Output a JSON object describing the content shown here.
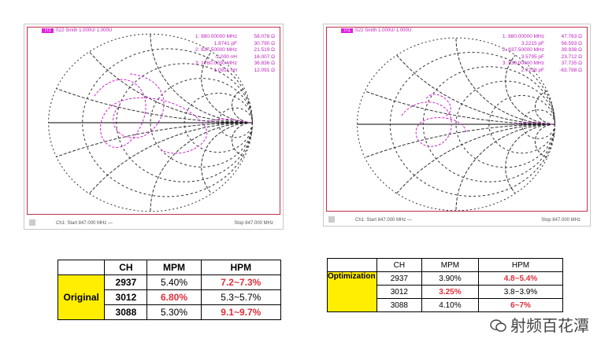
{
  "charts": [
    {
      "header_tag": "Tr1",
      "header": "S22 Smith 1.000U/ 1.000U",
      "markers": [
        [
          "1: 880.00000 MHz",
          "58.078 Ω"
        ],
        [
          "1.8741 pF",
          "30.790 Ω"
        ],
        [
          "2: 837.50000 MHz",
          "21.519 Ω"
        ],
        [
          "-2.000 nH",
          "16.007 Ω"
        ],
        [
          "3: 1760.0000 MHz",
          "36.836 Ω"
        ],
        [
          "1.0911 nH",
          "12.091 Ω"
        ]
      ],
      "start": "Ch1: Start 847.000 MHz —",
      "stop": "Stop 847.000 MHz"
    },
    {
      "header_tag": "Tr1",
      "header": "S22 Smith 1.000U/ 1.000U",
      "markers": [
        [
          "1: 880.00000 MHz",
          "47.763 Ω"
        ],
        [
          "3.2215 pF",
          "56.593 Ω"
        ],
        [
          "2: 837.50000 MHz",
          "39.938 Ω"
        ],
        [
          "3.5795 pF",
          "23.712 Ω"
        ],
        [
          "3: 930.00000 MHz",
          "37.735 Ω"
        ],
        [
          "2.7238 pF",
          "-63.788 Ω"
        ]
      ],
      "start": "Ch1: Start 847.000 MHz —",
      "stop": "Stop 847.000 MHz"
    }
  ],
  "colors": {
    "trace": "#d020d0",
    "highlight": "#ffee00",
    "bad": "#e0303c"
  },
  "tables": [
    {
      "label": "Original",
      "headers": [
        "CH",
        "MPM",
        "HPM"
      ],
      "rows": [
        [
          "2937",
          "5.40%",
          "7.2~7.3%"
        ],
        [
          "3012",
          "6.80%",
          "5.3~5.7%"
        ],
        [
          "3088",
          "5.30%",
          "9.1~9.7%"
        ]
      ],
      "red": [
        [
          0,
          2
        ],
        [
          1,
          1
        ],
        [
          2,
          2
        ]
      ]
    },
    {
      "label": "Optimization",
      "headers": [
        "CH",
        "MPM",
        "HPM"
      ],
      "rows": [
        [
          "2937",
          "3.90%",
          "4.8~5.4%"
        ],
        [
          "3012",
          "3.25%",
          "3.8~3.9%"
        ],
        [
          "3088",
          "4.10%",
          "6~7%"
        ]
      ],
      "red": [
        [
          0,
          2
        ],
        [
          1,
          1
        ],
        [
          2,
          2
        ]
      ]
    }
  ],
  "watermark": "射频百花潭"
}
